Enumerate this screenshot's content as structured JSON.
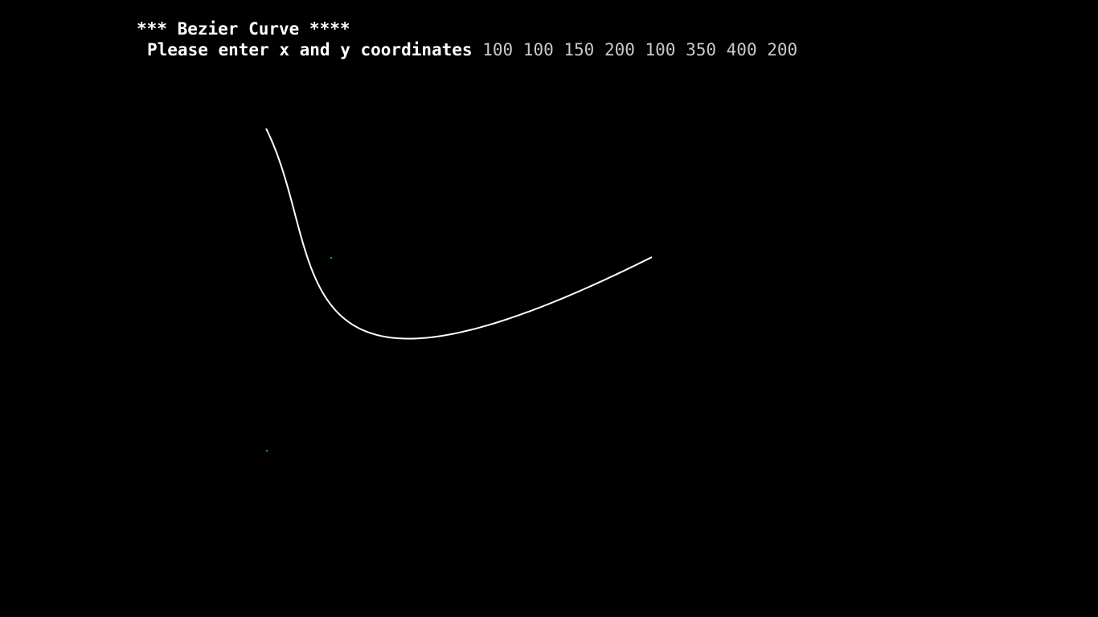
{
  "console": {
    "title": "*** Bezier Curve ****",
    "prompt": "Please enter x and y coordinates",
    "input": "100 100 150 200 100 350 400 200"
  },
  "colors": {
    "background": "#000000",
    "text": "#ffffff",
    "input_text": "#c8c8c8",
    "curve": "#ffffff"
  }
}
